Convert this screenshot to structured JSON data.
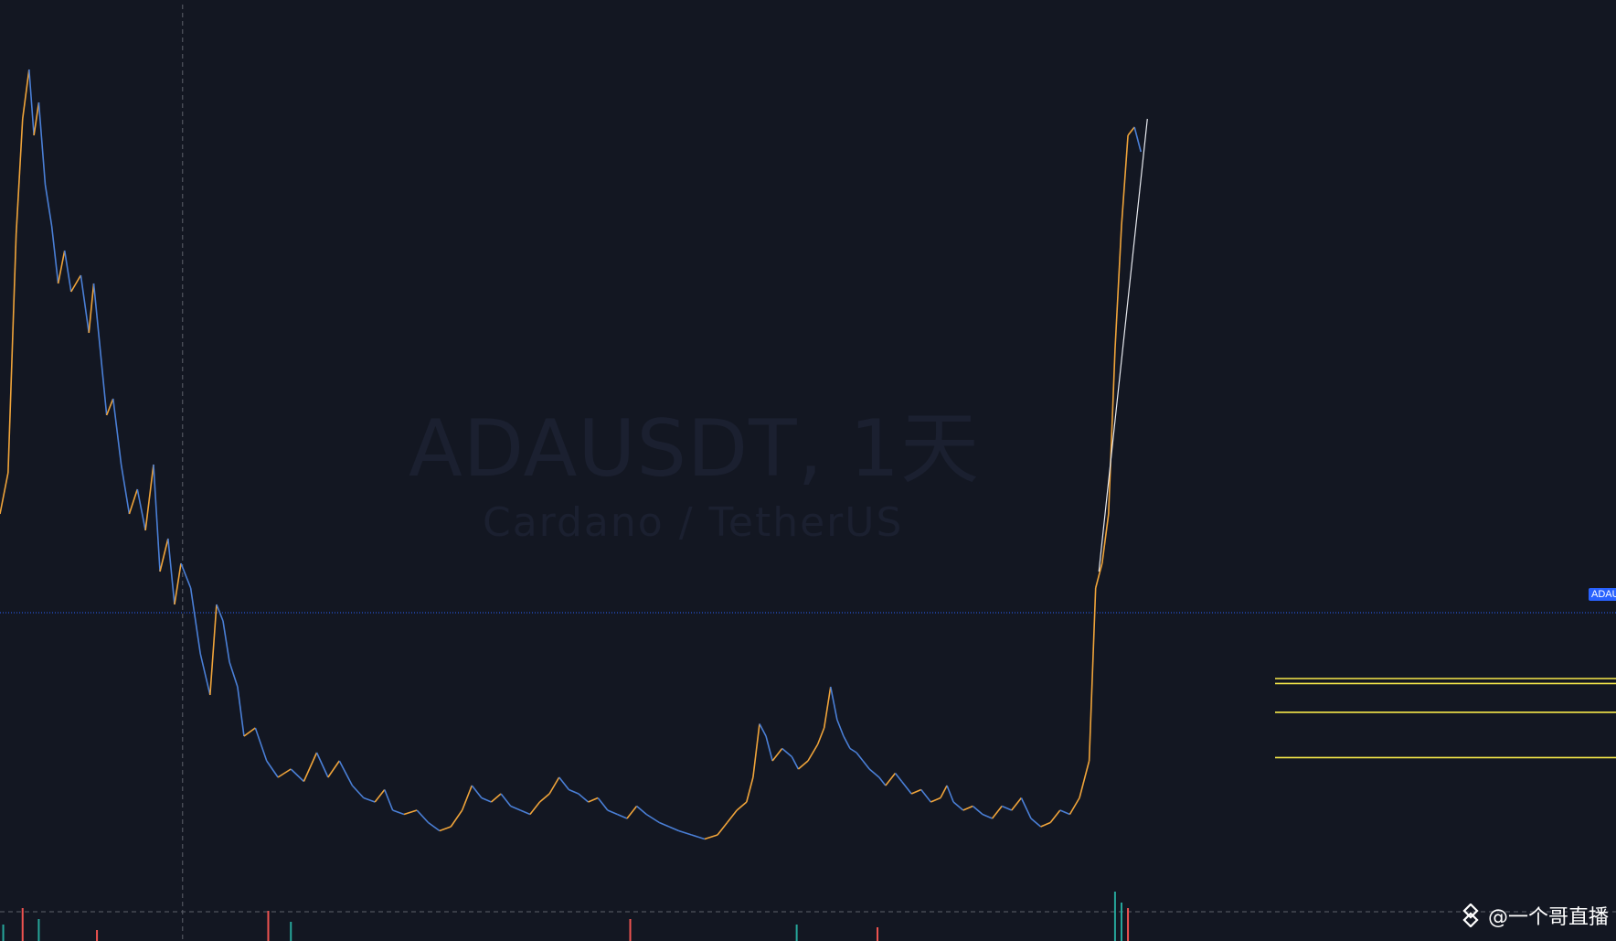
{
  "watermark": {
    "title": "ADAUSDT, 1天",
    "subtitle": "Cardano / TetherUS"
  },
  "price_label": "ADAUSDT",
  "credit": {
    "handle": "@一个哥直播",
    "icon": "binance-square-icon"
  },
  "colors": {
    "background": "#131722",
    "line_up": "#f0a43a",
    "line_down": "#4a7fd6",
    "price_line": "#2962ff",
    "level_lines": "#f7e94a",
    "volume_up": "#26a69a",
    "volume_down": "#ef5350",
    "crosshair": "#5d606b"
  },
  "chart_data": {
    "type": "line",
    "symbol": "ADAUSDT",
    "interval": "1天",
    "pair": "Cardano / TetherUS",
    "x_range": [
      0,
      1000
    ],
    "y_range": [
      0,
      1000
    ],
    "series": [
      {
        "values": [
          [
            0,
            420
          ],
          [
            5,
            470
          ],
          [
            10,
            760
          ],
          [
            14,
            900
          ],
          [
            18,
            960
          ],
          [
            21,
            880
          ],
          [
            24,
            920
          ],
          [
            28,
            820
          ],
          [
            32,
            770
          ],
          [
            36,
            700
          ],
          [
            40,
            740
          ],
          [
            44,
            690
          ],
          [
            50,
            710
          ],
          [
            55,
            640
          ],
          [
            58,
            700
          ],
          [
            62,
            620
          ],
          [
            66,
            540
          ],
          [
            70,
            560
          ],
          [
            75,
            480
          ],
          [
            80,
            420
          ],
          [
            85,
            450
          ],
          [
            90,
            400
          ],
          [
            95,
            480
          ],
          [
            99,
            350
          ],
          [
            104,
            390
          ],
          [
            108,
            310
          ],
          [
            112,
            360
          ],
          [
            118,
            330
          ],
          [
            124,
            250
          ],
          [
            130,
            200
          ],
          [
            134,
            310
          ],
          [
            138,
            290
          ],
          [
            142,
            240
          ],
          [
            147,
            210
          ],
          [
            151,
            150
          ],
          [
            158,
            160
          ],
          [
            165,
            120
          ],
          [
            172,
            100
          ],
          [
            180,
            110
          ],
          [
            188,
            95
          ],
          [
            196,
            130
          ],
          [
            203,
            100
          ],
          [
            210,
            120
          ],
          [
            218,
            90
          ],
          [
            225,
            75
          ],
          [
            232,
            70
          ],
          [
            238,
            85
          ],
          [
            243,
            60
          ],
          [
            250,
            55
          ],
          [
            258,
            60
          ],
          [
            265,
            45
          ],
          [
            272,
            35
          ],
          [
            279,
            40
          ],
          [
            286,
            60
          ],
          [
            292,
            90
          ],
          [
            298,
            75
          ],
          [
            304,
            70
          ],
          [
            310,
            80
          ],
          [
            316,
            65
          ],
          [
            322,
            60
          ],
          [
            328,
            55
          ],
          [
            334,
            70
          ],
          [
            340,
            80
          ],
          [
            346,
            100
          ],
          [
            352,
            85
          ],
          [
            358,
            80
          ],
          [
            364,
            70
          ],
          [
            370,
            75
          ],
          [
            376,
            60
          ],
          [
            382,
            55
          ],
          [
            388,
            50
          ],
          [
            394,
            65
          ],
          [
            400,
            55
          ],
          [
            408,
            45
          ],
          [
            414,
            40
          ],
          [
            420,
            35
          ],
          [
            428,
            30
          ],
          [
            436,
            25
          ],
          [
            444,
            30
          ],
          [
            450,
            45
          ],
          [
            456,
            60
          ],
          [
            462,
            70
          ],
          [
            466,
            100
          ],
          [
            470,
            165
          ],
          [
            474,
            150
          ],
          [
            478,
            120
          ],
          [
            484,
            135
          ],
          [
            490,
            125
          ],
          [
            494,
            110
          ],
          [
            500,
            120
          ],
          [
            506,
            140
          ],
          [
            510,
            160
          ],
          [
            514,
            210
          ],
          [
            518,
            170
          ],
          [
            522,
            150
          ],
          [
            526,
            135
          ],
          [
            530,
            130
          ],
          [
            534,
            120
          ],
          [
            538,
            110
          ],
          [
            544,
            100
          ],
          [
            548,
            90
          ],
          [
            554,
            105
          ],
          [
            558,
            95
          ],
          [
            564,
            80
          ],
          [
            570,
            85
          ],
          [
            576,
            70
          ],
          [
            582,
            75
          ],
          [
            586,
            90
          ],
          [
            590,
            70
          ],
          [
            596,
            60
          ],
          [
            602,
            65
          ],
          [
            608,
            55
          ],
          [
            614,
            50
          ],
          [
            620,
            65
          ],
          [
            626,
            60
          ],
          [
            632,
            75
          ],
          [
            638,
            50
          ],
          [
            644,
            40
          ],
          [
            650,
            45
          ],
          [
            656,
            60
          ],
          [
            662,
            55
          ],
          [
            668,
            75
          ],
          [
            674,
            120
          ],
          [
            678,
            330
          ],
          [
            682,
            360
          ],
          [
            686,
            420
          ],
          [
            690,
            620
          ],
          [
            694,
            770
          ],
          [
            698,
            880
          ],
          [
            702,
            890
          ],
          [
            706,
            860
          ]
        ]
      }
    ],
    "volume": [
      {
        "x": 2,
        "v": 30,
        "up": true
      },
      {
        "x": 14,
        "v": 60,
        "up": false
      },
      {
        "x": 24,
        "v": 40,
        "up": true
      },
      {
        "x": 60,
        "v": 20,
        "up": false
      },
      {
        "x": 166,
        "v": 55,
        "up": false
      },
      {
        "x": 180,
        "v": 35,
        "up": true
      },
      {
        "x": 390,
        "v": 40,
        "up": false
      },
      {
        "x": 493,
        "v": 30,
        "up": true
      },
      {
        "x": 543,
        "v": 25,
        "up": false
      },
      {
        "x": 690,
        "v": 90,
        "up": true
      },
      {
        "x": 694,
        "v": 70,
        "up": true
      },
      {
        "x": 698,
        "v": 60,
        "up": false
      }
    ],
    "horizontal_levels": [
      220,
      214,
      179,
      124
    ],
    "current_price_level": 300,
    "crosshair_x": 113
  }
}
